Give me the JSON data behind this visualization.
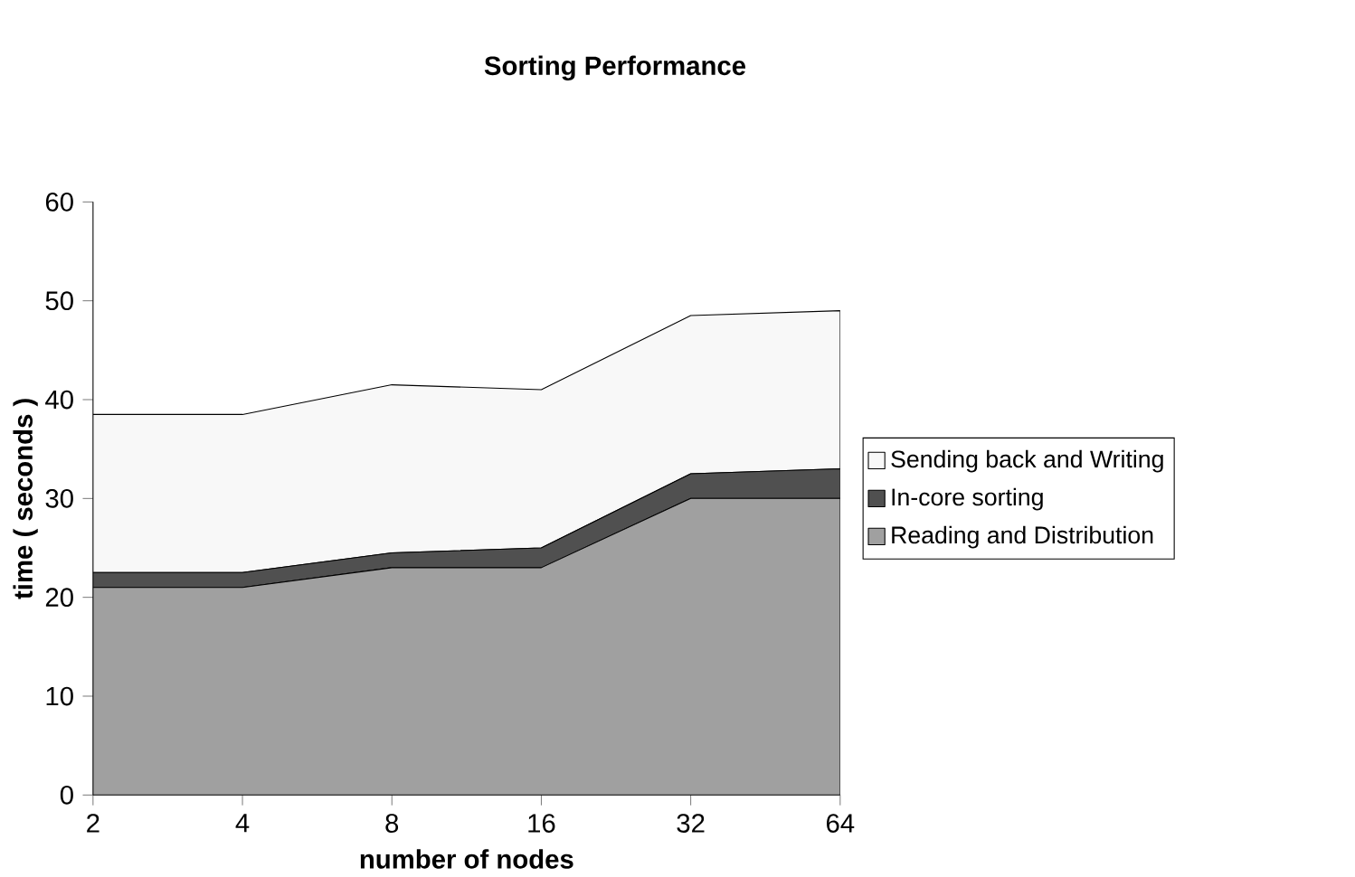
{
  "chart_data": {
    "type": "area",
    "title": "Sorting Performance",
    "xlabel": "number of nodes",
    "ylabel": "time ( seconds )",
    "categories": [
      "2",
      "4",
      "8",
      "16",
      "32",
      "64"
    ],
    "stacked": true,
    "series": [
      {
        "name": "Reading and Distribution",
        "color": "#a0a0a0",
        "values": [
          21,
          21,
          23,
          23,
          30,
          30
        ]
      },
      {
        "name": "In-core sorting",
        "color": "#505050",
        "values": [
          1.5,
          1.5,
          1.5,
          2,
          2.5,
          3
        ]
      },
      {
        "name": "Sending back and Writing",
        "color": "#f8f8f8",
        "values": [
          16,
          16,
          17,
          16,
          16,
          16
        ]
      }
    ],
    "ylim": [
      0,
      60
    ],
    "yticks": [
      0,
      10,
      20,
      30,
      40,
      50,
      60
    ],
    "legend": "right"
  }
}
